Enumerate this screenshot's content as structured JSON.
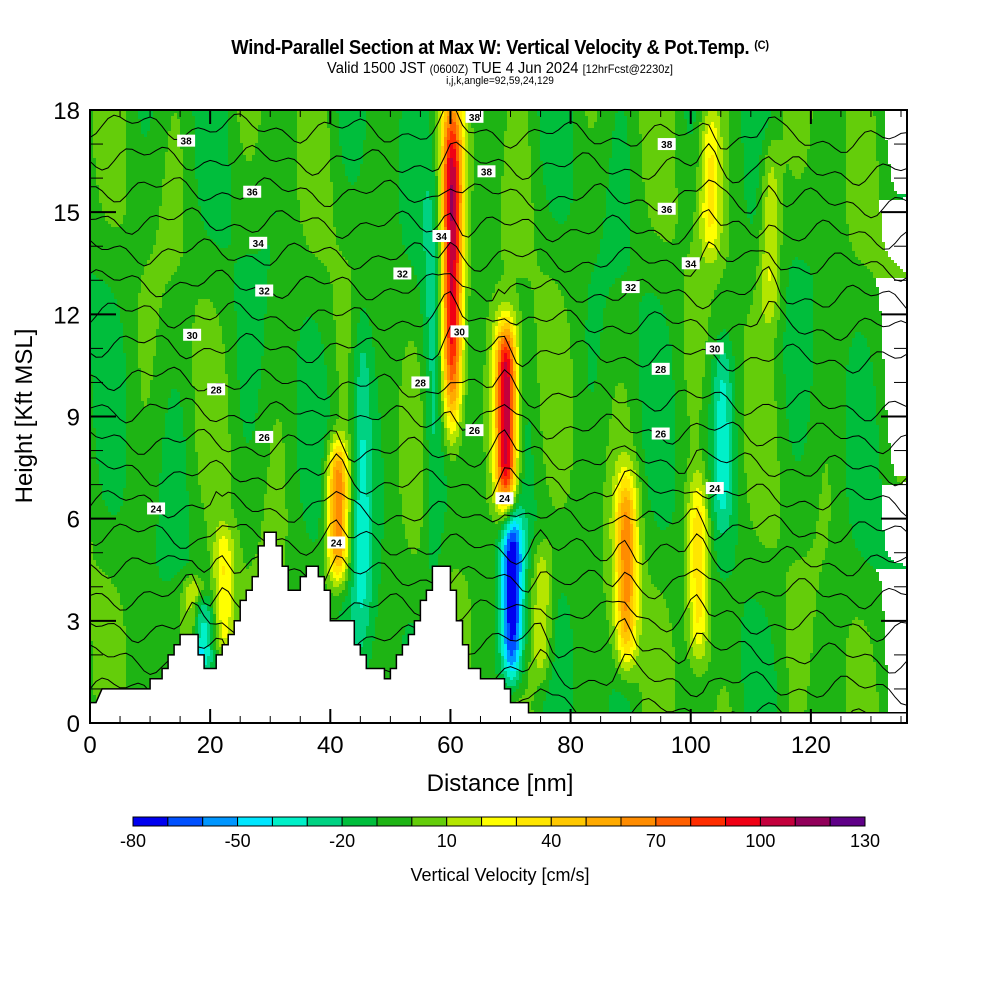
{
  "title": {
    "main": "Wind-Parallel Section at Max W: Vertical Velocity & Pot.Temp.",
    "copyright": "(C)",
    "valid_prefix": "Valid 1500 JST",
    "utc": "(0600Z)",
    "date": "TUE 4 Jun 2024",
    "forecast": "[12hrFcst@2230z]",
    "indices": "i,j,k,angle=92,59,24,129"
  },
  "chart_data": {
    "type": "heatmap",
    "title": "Wind-Parallel Section at Max W: Vertical Velocity & Pot.Temp.",
    "xlabel": "Distance [nm]",
    "ylabel": "Height [Kft MSL]",
    "xlim": [
      0,
      136
    ],
    "ylim": [
      0,
      18
    ],
    "xticks": [
      "0",
      "20",
      "40",
      "60",
      "80",
      "100",
      "120"
    ],
    "yticks": [
      "0",
      "3",
      "6",
      "9",
      "12",
      "15",
      "18"
    ],
    "colorbar": {
      "label": "Vertical Velocity [cm/s]",
      "range": [
        -80,
        130
      ],
      "tick_labels": [
        "-80",
        "-50",
        "-20",
        "10",
        "40",
        "70",
        "100",
        "130"
      ],
      "colors": [
        "#0000f0",
        "#0050ff",
        "#0096ff",
        "#00e6ff",
        "#00f0c8",
        "#00d282",
        "#00be3c",
        "#1eb414",
        "#64cd0a",
        "#b4e600",
        "#ffff00",
        "#ffe600",
        "#ffc800",
        "#ffaa00",
        "#ff8c00",
        "#ff5f00",
        "#ff2d00",
        "#f00014",
        "#c3003c",
        "#91005a",
        "#5f0087"
      ]
    },
    "background_value": -5,
    "updrafts": [
      {
        "x": 60,
        "y_bottom": 9,
        "y_top": 18,
        "peak_cm_s": 110
      },
      {
        "x": 69,
        "y_bottom": 6.5,
        "y_top": 11.5,
        "peak_cm_s": 115
      },
      {
        "x": 41,
        "y_bottom": 4.5,
        "y_top": 8,
        "peak_cm_s": 70
      },
      {
        "x": 89,
        "y_bottom": 2,
        "y_top": 7,
        "peak_cm_s": 60
      },
      {
        "x": 101,
        "y_bottom": 2,
        "y_top": 7,
        "peak_cm_s": 40
      },
      {
        "x": 103,
        "y_bottom": 14,
        "y_top": 18,
        "peak_cm_s": 30
      },
      {
        "x": 113,
        "y_bottom": 12,
        "y_top": 17,
        "peak_cm_s": 25
      },
      {
        "x": 22,
        "y_bottom": 2,
        "y_top": 5.5,
        "peak_cm_s": 30
      },
      {
        "x": 17,
        "y_bottom": 2.5,
        "y_top": 4,
        "peak_cm_s": 35
      },
      {
        "x": 75,
        "y_bottom": 1.5,
        "y_top": 5,
        "peak_cm_s": 25
      }
    ],
    "downdrafts": [
      {
        "x": 70,
        "y_bottom": 1.5,
        "y_top": 6,
        "min_cm_s": -80
      },
      {
        "x": 18,
        "y_bottom": 2,
        "y_top": 3.5,
        "min_cm_s": -45
      },
      {
        "x": 45,
        "y_bottom": 3,
        "y_top": 12,
        "min_cm_s": -35
      },
      {
        "x": 57,
        "y_bottom": 4,
        "y_top": 16,
        "min_cm_s": -25
      },
      {
        "x": 105,
        "y_bottom": 6,
        "y_top": 11,
        "min_cm_s": -30
      }
    ],
    "theta_contours": {
      "levels": [
        20,
        22,
        24,
        26,
        28,
        30,
        32,
        34,
        36,
        38
      ],
      "labels": [
        {
          "text": "38",
          "x": 16,
          "y": 17.1
        },
        {
          "text": "38",
          "x": 64,
          "y": 17.8
        },
        {
          "text": "38",
          "x": 66,
          "y": 16.2
        },
        {
          "text": "38",
          "x": 96,
          "y": 17.0
        },
        {
          "text": "36",
          "x": 27,
          "y": 15.6
        },
        {
          "text": "36",
          "x": 96,
          "y": 15.1
        },
        {
          "text": "34",
          "x": 28,
          "y": 14.1
        },
        {
          "text": "34",
          "x": 58.5,
          "y": 14.3
        },
        {
          "text": "34",
          "x": 100,
          "y": 13.5
        },
        {
          "text": "32",
          "x": 29,
          "y": 12.7
        },
        {
          "text": "32",
          "x": 52,
          "y": 13.2
        },
        {
          "text": "32",
          "x": 90,
          "y": 12.8
        },
        {
          "text": "30",
          "x": 17,
          "y": 11.4
        },
        {
          "text": "30",
          "x": 61.5,
          "y": 11.5
        },
        {
          "text": "30",
          "x": 104,
          "y": 11.0
        },
        {
          "text": "28",
          "x": 21,
          "y": 9.8
        },
        {
          "text": "28",
          "x": 55,
          "y": 10.0
        },
        {
          "text": "28",
          "x": 95,
          "y": 10.4
        },
        {
          "text": "26",
          "x": 29,
          "y": 8.4
        },
        {
          "text": "26",
          "x": 64,
          "y": 8.6
        },
        {
          "text": "26",
          "x": 95,
          "y": 8.5
        },
        {
          "text": "24",
          "x": 11,
          "y": 6.3
        },
        {
          "text": "24",
          "x": 41,
          "y": 5.3
        },
        {
          "text": "24",
          "x": 69,
          "y": 6.6
        },
        {
          "text": "24",
          "x": 104,
          "y": 6.9
        }
      ]
    },
    "terrain_kft": [
      [
        0,
        0.6
      ],
      [
        1,
        0.6
      ],
      [
        2,
        1
      ],
      [
        10,
        1
      ],
      [
        10,
        1.3
      ],
      [
        12,
        1.3
      ],
      [
        12,
        1.6
      ],
      [
        13,
        1.6
      ],
      [
        13,
        2
      ],
      [
        14,
        2
      ],
      [
        14,
        2.3
      ],
      [
        15,
        2.3
      ],
      [
        15,
        2.6
      ],
      [
        18,
        2.6
      ],
      [
        18,
        2
      ],
      [
        19,
        2
      ],
      [
        19,
        1.6
      ],
      [
        21,
        1.6
      ],
      [
        21,
        2
      ],
      [
        22,
        2
      ],
      [
        22,
        2.3
      ],
      [
        23,
        2.3
      ],
      [
        23,
        2.6
      ],
      [
        24,
        2.6
      ],
      [
        24,
        3
      ],
      [
        25,
        3
      ],
      [
        25,
        3.6
      ],
      [
        26,
        3.6
      ],
      [
        26,
        3.9
      ],
      [
        27,
        3.9
      ],
      [
        27,
        4.3
      ],
      [
        28,
        4.3
      ],
      [
        28,
        5.2
      ],
      [
        29,
        5.2
      ],
      [
        29,
        5.6
      ],
      [
        31,
        5.6
      ],
      [
        31,
        5.2
      ],
      [
        32,
        5.2
      ],
      [
        32,
        4.6
      ],
      [
        33,
        4.6
      ],
      [
        33,
        3.9
      ],
      [
        35,
        3.9
      ],
      [
        35,
        4.3
      ],
      [
        36,
        4.3
      ],
      [
        36,
        4.6
      ],
      [
        38,
        4.6
      ],
      [
        38,
        4.3
      ],
      [
        39,
        4.3
      ],
      [
        39,
        3.9
      ],
      [
        40,
        3.9
      ],
      [
        40,
        3
      ],
      [
        44,
        3
      ],
      [
        44,
        2.3
      ],
      [
        45,
        2.3
      ],
      [
        45,
        2
      ],
      [
        46,
        2
      ],
      [
        46,
        1.6
      ],
      [
        49,
        1.6
      ],
      [
        49,
        1.3
      ],
      [
        50,
        1.3
      ],
      [
        50,
        1.6
      ],
      [
        51,
        1.6
      ],
      [
        51,
        2
      ],
      [
        52,
        2
      ],
      [
        52,
        2.3
      ],
      [
        53,
        2.3
      ],
      [
        53,
        2.6
      ],
      [
        54,
        2.6
      ],
      [
        54,
        3
      ],
      [
        55,
        3
      ],
      [
        55,
        3.6
      ],
      [
        56,
        3.6
      ],
      [
        56,
        3.9
      ],
      [
        57,
        3.9
      ],
      [
        57,
        4.6
      ],
      [
        60,
        4.6
      ],
      [
        60,
        3.9
      ],
      [
        61,
        3.9
      ],
      [
        61,
        3
      ],
      [
        62,
        3
      ],
      [
        62,
        2.3
      ],
      [
        63,
        2.3
      ],
      [
        63,
        1.6
      ],
      [
        65,
        1.6
      ],
      [
        65,
        1.3
      ],
      [
        69,
        1.3
      ],
      [
        69,
        1
      ],
      [
        70,
        1
      ],
      [
        70,
        0.6
      ],
      [
        73,
        0.6
      ],
      [
        73,
        0.3
      ],
      [
        80,
        0.3
      ],
      [
        80,
        0.3
      ],
      [
        136,
        0.3
      ]
    ]
  }
}
